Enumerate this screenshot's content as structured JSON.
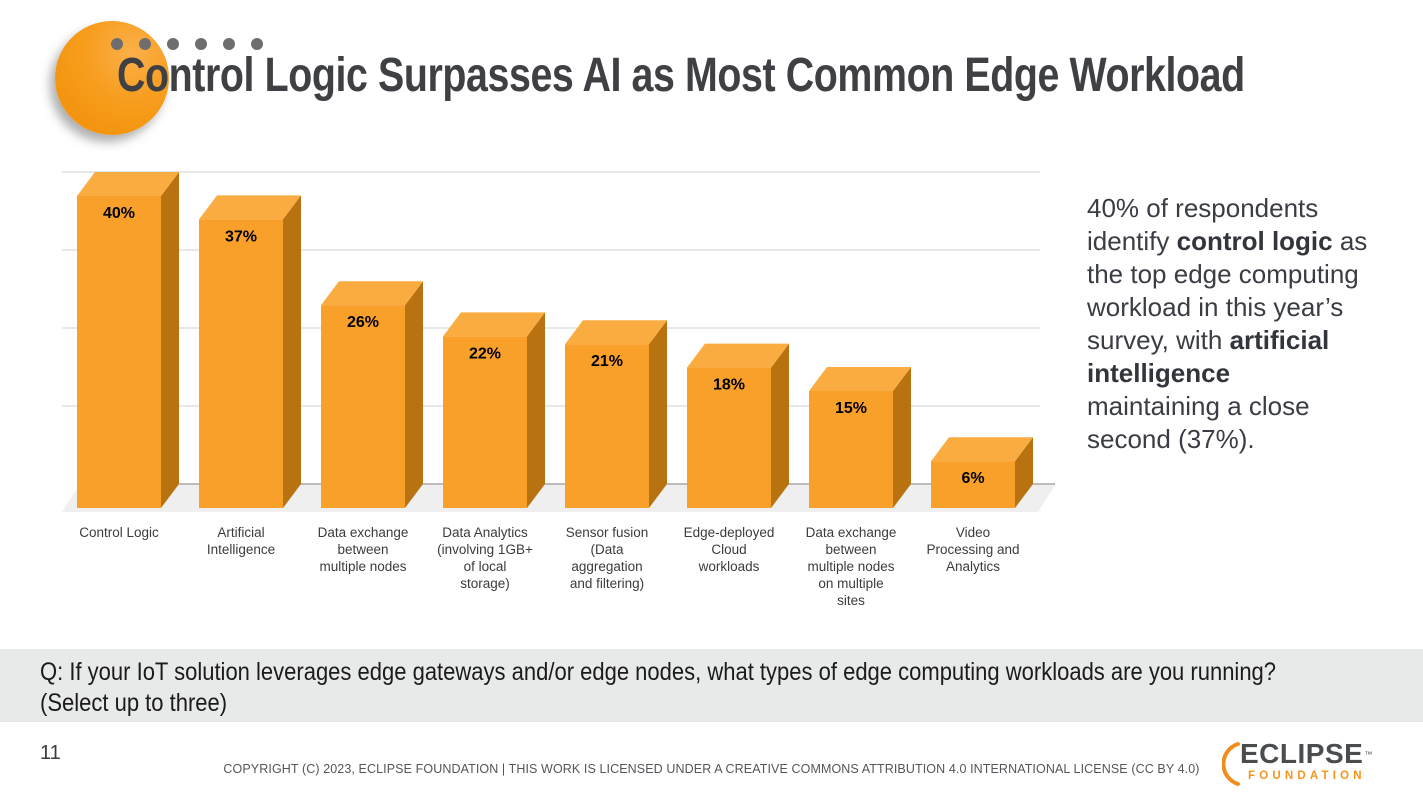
{
  "header": {
    "title": "Control Logic Surpasses AI as Most Common Edge Workload",
    "decoration": {
      "dot_count": 6,
      "dot_color": "#6E6E6E",
      "circle_color": "#F79C1C"
    }
  },
  "chart_data": {
    "type": "bar",
    "style": "3d-column",
    "title": "",
    "xlabel": "",
    "ylabel": "",
    "unit": "%",
    "ylim": [
      0,
      45
    ],
    "gridline_interval": 10,
    "grid": true,
    "legend": "none",
    "data_labels": "inside-top",
    "categories": [
      "Control Logic",
      "Artificial Intelligence",
      "Data exchange between multiple nodes",
      "Data Analytics (involving 1GB+ of local storage)",
      "Sensor fusion (Data aggregation and filtering)",
      "Edge-deployed Cloud workloads",
      "Data exchange between multiple nodes on multiple sites",
      "Video Processing and Analytics"
    ],
    "category_label_lines": [
      [
        "Control Logic"
      ],
      [
        "Artificial",
        "Intelligence"
      ],
      [
        "Data exchange",
        "between",
        "multiple nodes"
      ],
      [
        "Data Analytics",
        "(involving 1GB+",
        "of local",
        "storage)"
      ],
      [
        "Sensor fusion",
        "(Data",
        "aggregation",
        "and filtering)"
      ],
      [
        "Edge-deployed",
        "Cloud",
        "workloads"
      ],
      [
        "Data exchange",
        "between",
        "multiple nodes",
        "on multiple",
        "sites"
      ],
      [
        "Video",
        "Processing and",
        "Analytics"
      ]
    ],
    "values": [
      40,
      37,
      26,
      22,
      21,
      18,
      15,
      6
    ],
    "bar_colors": {
      "front": "#F9A02B",
      "top": "#FBAC41",
      "side": "#B8720F"
    },
    "floor_color": "#EFEFEF",
    "gridline_color": "#D9D9D9",
    "baseline_color": "#A9A9A9",
    "value_label_color": "#000000"
  },
  "insight": {
    "segments": [
      {
        "text": "40% of respondents identify ",
        "bold": false
      },
      {
        "text": "control logic",
        "bold": true
      },
      {
        "text": " as the top edge computing workload in this year’s survey, with ",
        "bold": false
      },
      {
        "text": "artificial intelligence",
        "bold": true,
        "break_after": true
      },
      {
        "text": "maintaining a close second (37%).",
        "bold": false
      }
    ]
  },
  "question": {
    "line1": "Q: If your IoT solution leverages edge gateways and/or edge nodes, what types of edge computing workloads are you running?",
    "line2": "(Select up to three)"
  },
  "footer": {
    "page_number": "11",
    "copyright": "COPYRIGHT (C) 2023, ECLIPSE FOUNDATION | THIS WORK IS LICENSED UNDER A CREATIVE COMMONS ATTRIBUTION 4.0 INTERNATIONAL LICENSE (CC BY 4.0)",
    "logo": {
      "brand": "ECLIPSE",
      "tm": "™",
      "sub": "FOUNDATION"
    }
  },
  "colors": {
    "accent_orange": "#F7941E",
    "title_gray": "#3E4043",
    "question_bar_bg": "#E8EAE9"
  }
}
